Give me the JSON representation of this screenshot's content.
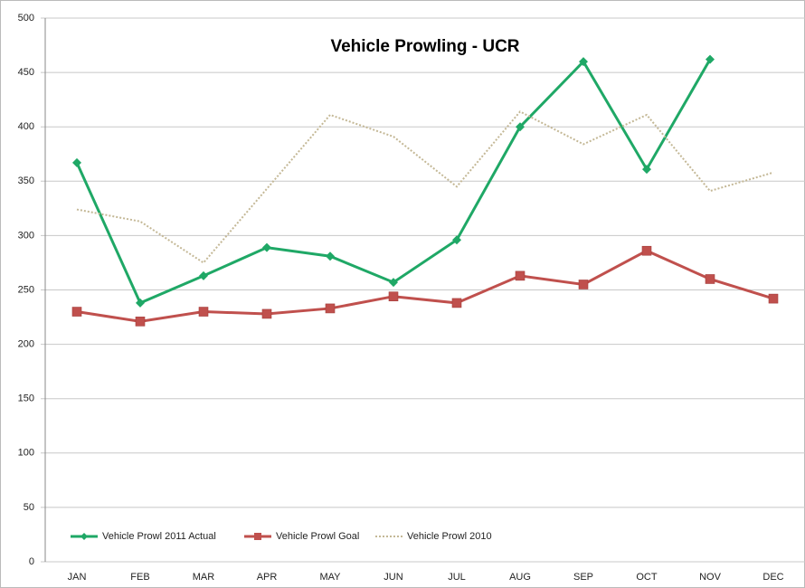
{
  "chart_data": {
    "type": "line",
    "title": "Vehicle Prowling - UCR",
    "categories": [
      "JAN",
      "FEB",
      "MAR",
      "APR",
      "MAY",
      "JUN",
      "JUL",
      "AUG",
      "SEP",
      "OCT",
      "NOV",
      "DEC"
    ],
    "series": [
      {
        "name": "Vehicle Prowl 2011 Actual",
        "color": "#1fa866",
        "marker": "diamond",
        "style": "solid",
        "values": [
          367,
          238,
          263,
          289,
          281,
          257,
          296,
          400,
          460,
          361,
          462,
          null
        ]
      },
      {
        "name": "Vehicle Prowl Goal",
        "color": "#c0504d",
        "marker": "square",
        "style": "solid",
        "values": [
          230,
          221,
          230,
          228,
          233,
          244,
          238,
          263,
          255,
          286,
          260,
          242
        ]
      },
      {
        "name": "Vehicle Prowl 2010",
        "color": "#c4b896",
        "marker": "none",
        "style": "dotted",
        "values": [
          324,
          313,
          275,
          343,
          411,
          391,
          345,
          414,
          384,
          411,
          341,
          358
        ]
      }
    ],
    "ylim": [
      0,
      500
    ],
    "yticks": [
      0,
      50,
      100,
      150,
      200,
      250,
      300,
      350,
      400,
      450,
      500
    ],
    "grid": true,
    "legend": "bottom-left"
  }
}
